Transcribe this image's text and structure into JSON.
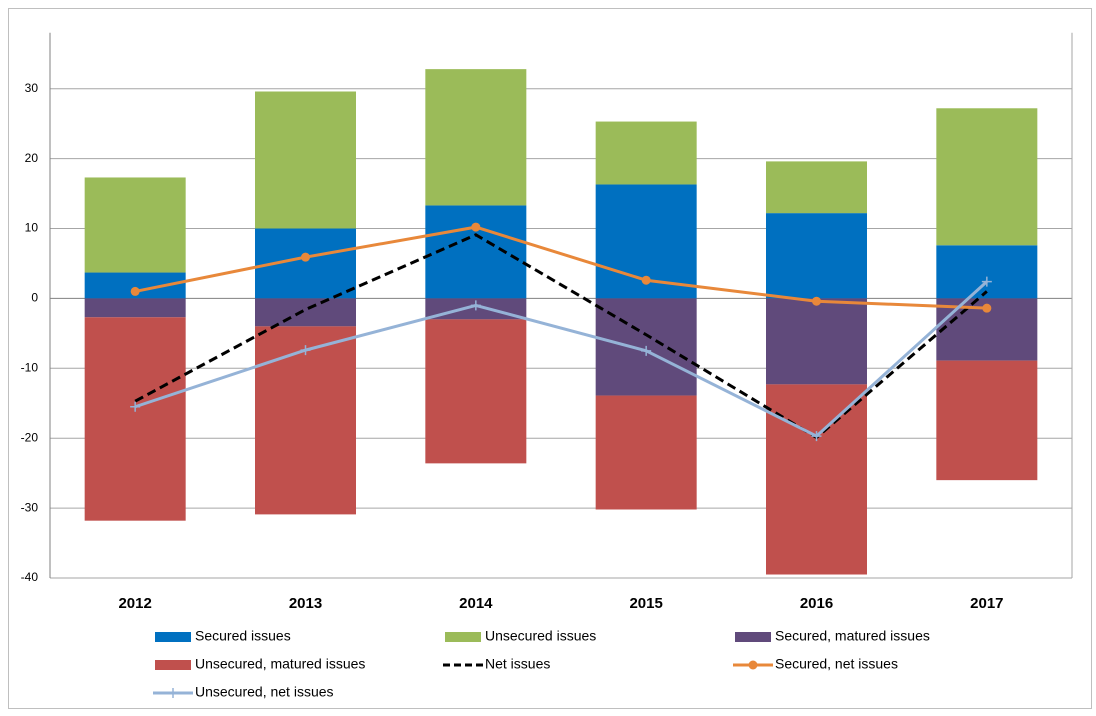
{
  "chart_data": {
    "type": "bar",
    "stacked": true,
    "categories": [
      "2012",
      "2013",
      "2014",
      "2015",
      "2016",
      "2017"
    ],
    "ylim": [
      -40,
      38
    ],
    "yticks": [
      -40,
      -30,
      -20,
      -10,
      0,
      10,
      20,
      30
    ],
    "grid": true,
    "legend": "bottom",
    "series": [
      {
        "name": "Secured issues",
        "kind": "bar",
        "color": "#0070c0",
        "values": [
          3.7,
          10,
          13.3,
          16.3,
          12.2,
          7.6
        ]
      },
      {
        "name": "Unsecured issues",
        "kind": "bar",
        "color": "#9bbb59",
        "values": [
          13.6,
          19.6,
          19.5,
          9.0,
          7.4,
          19.6
        ]
      },
      {
        "name": "Secured, matured issues",
        "kind": "bar",
        "color": "#604a7b",
        "values": [
          -2.7,
          -4.0,
          -3.0,
          -13.9,
          -12.3,
          -8.9
        ]
      },
      {
        "name": "Unsecured, matured issues",
        "kind": "bar",
        "color": "#c0504d",
        "values": [
          -29.1,
          -26.9,
          -20.6,
          -16.3,
          -27.2,
          -17.1
        ]
      },
      {
        "name": "Net issues",
        "kind": "line",
        "style": "dashed",
        "marker": "none",
        "color": "#000000",
        "values": [
          -14.7,
          -1.6,
          9.1,
          -5.2,
          -19.9,
          1.0
        ]
      },
      {
        "name": "Secured, net issues",
        "kind": "line",
        "style": "solid",
        "marker": "circle",
        "color": "#e8883a",
        "values": [
          1.0,
          5.9,
          10.2,
          2.6,
          -0.4,
          -1.4
        ]
      },
      {
        "name": "Unsecured, net issues",
        "kind": "line",
        "style": "solid",
        "marker": "plus",
        "color": "#95b3d7",
        "values": [
          -15.5,
          -7.4,
          -1.0,
          -7.5,
          -19.7,
          2.4
        ]
      }
    ]
  }
}
